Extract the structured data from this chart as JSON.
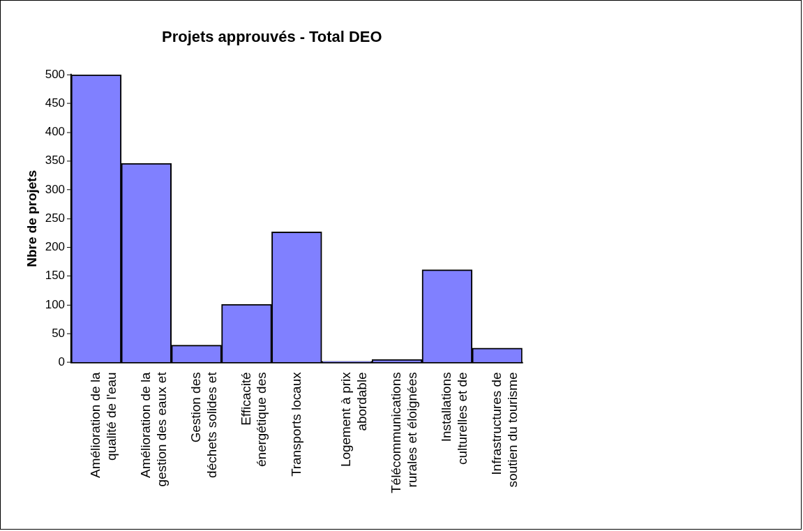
{
  "chart_data": {
    "type": "bar",
    "title": "Projets approuvés - Total DEO",
    "ylabel": "Nbre de projets",
    "categories": [
      "Amélioration de la\nqualité de l'eau",
      "Amélioration de la\ngestion des eaux et",
      "Gestion des\ndéchets solides et",
      "Efficacité\nénergétique des",
      "Transports locaux",
      "Logement à prix\nabordable",
      "Télécommunications\nrurales et éloignées",
      "Installations\nculturelles et de",
      "Infrastructures de\nsoutien du tourisme"
    ],
    "values": [
      500,
      346,
      30,
      101,
      227,
      2,
      5,
      161,
      25
    ],
    "color": "#8080ff",
    "ylim": [
      0,
      500
    ],
    "yticks": [
      0,
      50,
      100,
      150,
      200,
      250,
      300,
      350,
      400,
      450,
      500
    ],
    "grid": false,
    "legend": false
  }
}
